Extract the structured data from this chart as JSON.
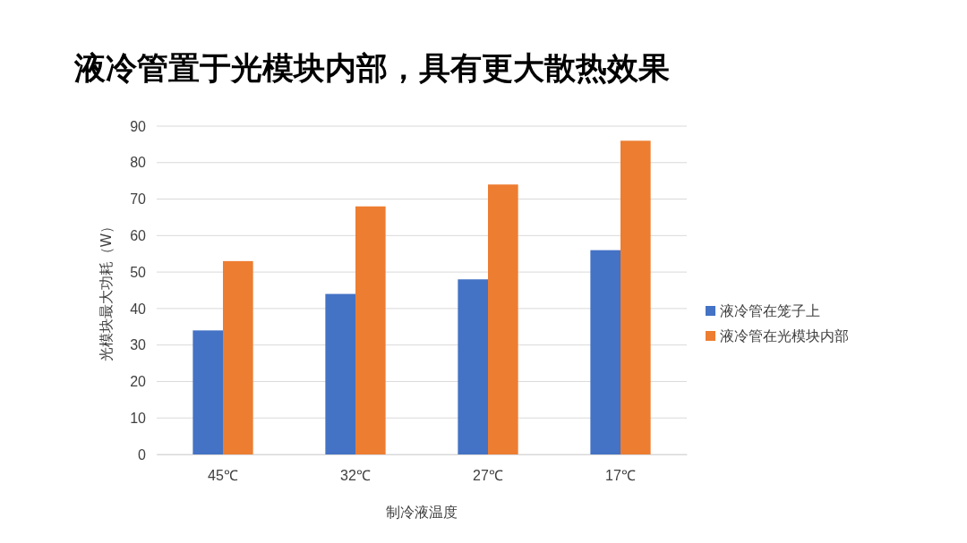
{
  "chart_data": {
    "type": "bar",
    "title": "液冷管置于光模块内部，具有更大散热效果",
    "xlabel": "制冷液温度",
    "ylabel": "光模块最大功耗（W）",
    "categories": [
      "45℃",
      "32℃",
      "27℃",
      "17℃"
    ],
    "series": [
      {
        "name": "液冷管在笼子上",
        "color": "#4472c4",
        "values": [
          34,
          44,
          48,
          56
        ]
      },
      {
        "name": "液冷管在光模块内部",
        "color": "#ed7d31",
        "values": [
          53,
          68,
          74,
          86
        ]
      }
    ],
    "ylim": [
      0,
      90
    ],
    "yticks": [
      0,
      10,
      20,
      30,
      40,
      50,
      60,
      70,
      80,
      90
    ],
    "grid": "y",
    "legend": "right"
  }
}
